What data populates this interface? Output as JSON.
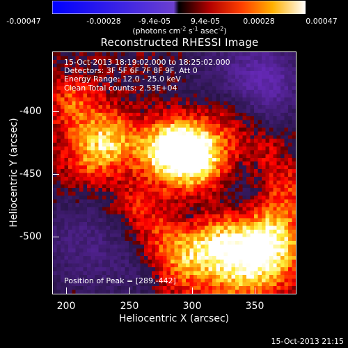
{
  "colorbar": {
    "ticks": [
      "-0.00047",
      "-0.00028",
      "-9.4e-05",
      "9.4e-05",
      "0.00028",
      "0.00047"
    ],
    "unit_prefix": "(photons cm",
    "unit_exp1": "-2",
    "unit_mid1": " s",
    "unit_exp2": "-1",
    "unit_mid2": " asec",
    "unit_exp3": "-2",
    "unit_suffix": ")",
    "colors": [
      "#0000ff",
      "#ff0000",
      "#ffa000",
      "#ffff90",
      "#ffffff"
    ]
  },
  "title": "Reconstructed RHESSI Image",
  "annotations": {
    "time_range": "15-Oct-2013 18:19:02.000 to 18:25:02.000",
    "detectors": "Detectors: 3F 5F 6F 7F 8F 9F, Att 0",
    "energy": "Energy Range: 12.0 - 25.0 keV",
    "clean": "Clean     Total counts: 2.53E+04",
    "peak": "Position of Peak = [289,-442]"
  },
  "axes": {
    "xlabel": "Heliocentric X (arcsec)",
    "ylabel": "Heliocentric Y (arcsec)",
    "xticks": [
      "200",
      "250",
      "300",
      "350"
    ],
    "yticks": [
      "-400",
      "-450",
      "-500"
    ],
    "xlim": [
      190,
      383
    ],
    "ylim": [
      -545,
      -352
    ]
  },
  "footer": "15-Oct-2013 21:15"
}
